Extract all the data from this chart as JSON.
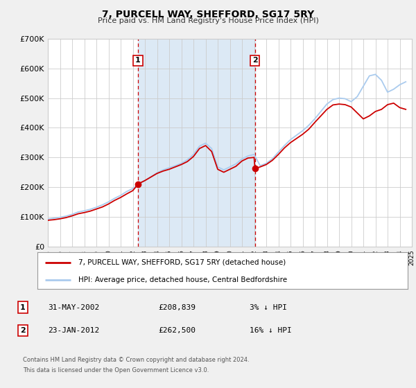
{
  "title": "7, PURCELL WAY, SHEFFORD, SG17 5RY",
  "subtitle": "Price paid vs. HM Land Registry's House Price Index (HPI)",
  "background_color": "#f0f0f0",
  "plot_bg_color": "#ffffff",
  "shaded_region_color": "#dce9f5",
  "grid_color": "#cccccc",
  "hpi_line_color": "#aacbee",
  "price_line_color": "#cc0000",
  "marker_color": "#cc0000",
  "sale1_date_num": 2002.42,
  "sale1_price": 208839,
  "sale1_label": "1",
  "sale2_date_num": 2012.07,
  "sale2_price": 262500,
  "sale2_label": "2",
  "xmin": 1995,
  "xmax": 2025,
  "ymin": 0,
  "ymax": 700000,
  "yticks": [
    0,
    100000,
    200000,
    300000,
    400000,
    500000,
    600000,
    700000
  ],
  "ytick_labels": [
    "£0",
    "£100K",
    "£200K",
    "£300K",
    "£400K",
    "£500K",
    "£600K",
    "£700K"
  ],
  "legend_label_red": "7, PURCELL WAY, SHEFFORD, SG17 5RY (detached house)",
  "legend_label_blue": "HPI: Average price, detached house, Central Bedfordshire",
  "annotation1_date": "31-MAY-2002",
  "annotation1_price": "£208,839",
  "annotation1_hpi": "3% ↓ HPI",
  "annotation2_date": "23-JAN-2012",
  "annotation2_price": "£262,500",
  "annotation2_hpi": "16% ↓ HPI",
  "footer_line1": "Contains HM Land Registry data © Crown copyright and database right 2024.",
  "footer_line2": "This data is licensed under the Open Government Licence v3.0.",
  "hpi_x": [
    1995,
    1995.5,
    1996,
    1996.5,
    1997,
    1997.5,
    1998,
    1998.5,
    1999,
    1999.5,
    2000,
    2000.5,
    2001,
    2001.5,
    2002,
    2002.5,
    2003,
    2003.5,
    2004,
    2004.5,
    2005,
    2005.5,
    2006,
    2006.5,
    2007,
    2007.5,
    2008,
    2008.5,
    2009,
    2009.5,
    2010,
    2010.5,
    2011,
    2011.5,
    2012,
    2012.5,
    2013,
    2013.5,
    2014,
    2014.5,
    2015,
    2015.5,
    2016,
    2016.5,
    2017,
    2017.5,
    2018,
    2018.5,
    2019,
    2019.5,
    2020,
    2020.5,
    2021,
    2021.5,
    2022,
    2022.5,
    2023,
    2023.5,
    2024,
    2024.5
  ],
  "hpi_y": [
    92000,
    95000,
    98000,
    102000,
    108000,
    116000,
    120000,
    125000,
    132000,
    140000,
    150000,
    162000,
    172000,
    185000,
    195000,
    210000,
    222000,
    235000,
    248000,
    258000,
    265000,
    272000,
    280000,
    292000,
    310000,
    338000,
    348000,
    330000,
    268000,
    258000,
    268000,
    278000,
    295000,
    305000,
    310000,
    272000,
    280000,
    295000,
    318000,
    340000,
    360000,
    375000,
    390000,
    408000,
    430000,
    455000,
    480000,
    495000,
    500000,
    498000,
    488000,
    505000,
    540000,
    575000,
    580000,
    560000,
    520000,
    530000,
    545000,
    555000
  ],
  "price_x": [
    1995,
    1995.5,
    1996,
    1996.5,
    1997,
    1997.5,
    1998,
    1998.5,
    1999,
    1999.5,
    2000,
    2000.5,
    2001,
    2001.5,
    2002,
    2002.42,
    2002.5,
    2003,
    2003.5,
    2004,
    2004.5,
    2005,
    2005.5,
    2006,
    2006.5,
    2007,
    2007.5,
    2008,
    2008.5,
    2009,
    2009.5,
    2010,
    2010.5,
    2011,
    2011.5,
    2012,
    2012.07,
    2012.5,
    2013,
    2013.5,
    2014,
    2014.5,
    2015,
    2015.5,
    2016,
    2016.5,
    2017,
    2017.5,
    2018,
    2018.5,
    2019,
    2019.5,
    2020,
    2020.5,
    2021,
    2021.5,
    2022,
    2022.5,
    2023,
    2023.5,
    2024,
    2024.5
  ],
  "price_y": [
    88000,
    90000,
    93000,
    97000,
    103000,
    110000,
    114000,
    119000,
    126000,
    133000,
    143000,
    155000,
    165000,
    177000,
    188000,
    208839,
    212000,
    222000,
    234000,
    246000,
    254000,
    260000,
    268000,
    276000,
    286000,
    303000,
    330000,
    340000,
    320000,
    260000,
    250000,
    260000,
    270000,
    288000,
    298000,
    300000,
    262500,
    268000,
    276000,
    290000,
    310000,
    332000,
    350000,
    364000,
    378000,
    395000,
    418000,
    440000,
    462000,
    477000,
    480000,
    478000,
    470000,
    450000,
    430000,
    440000,
    455000,
    462000,
    478000,
    483000,
    468000,
    462000
  ]
}
